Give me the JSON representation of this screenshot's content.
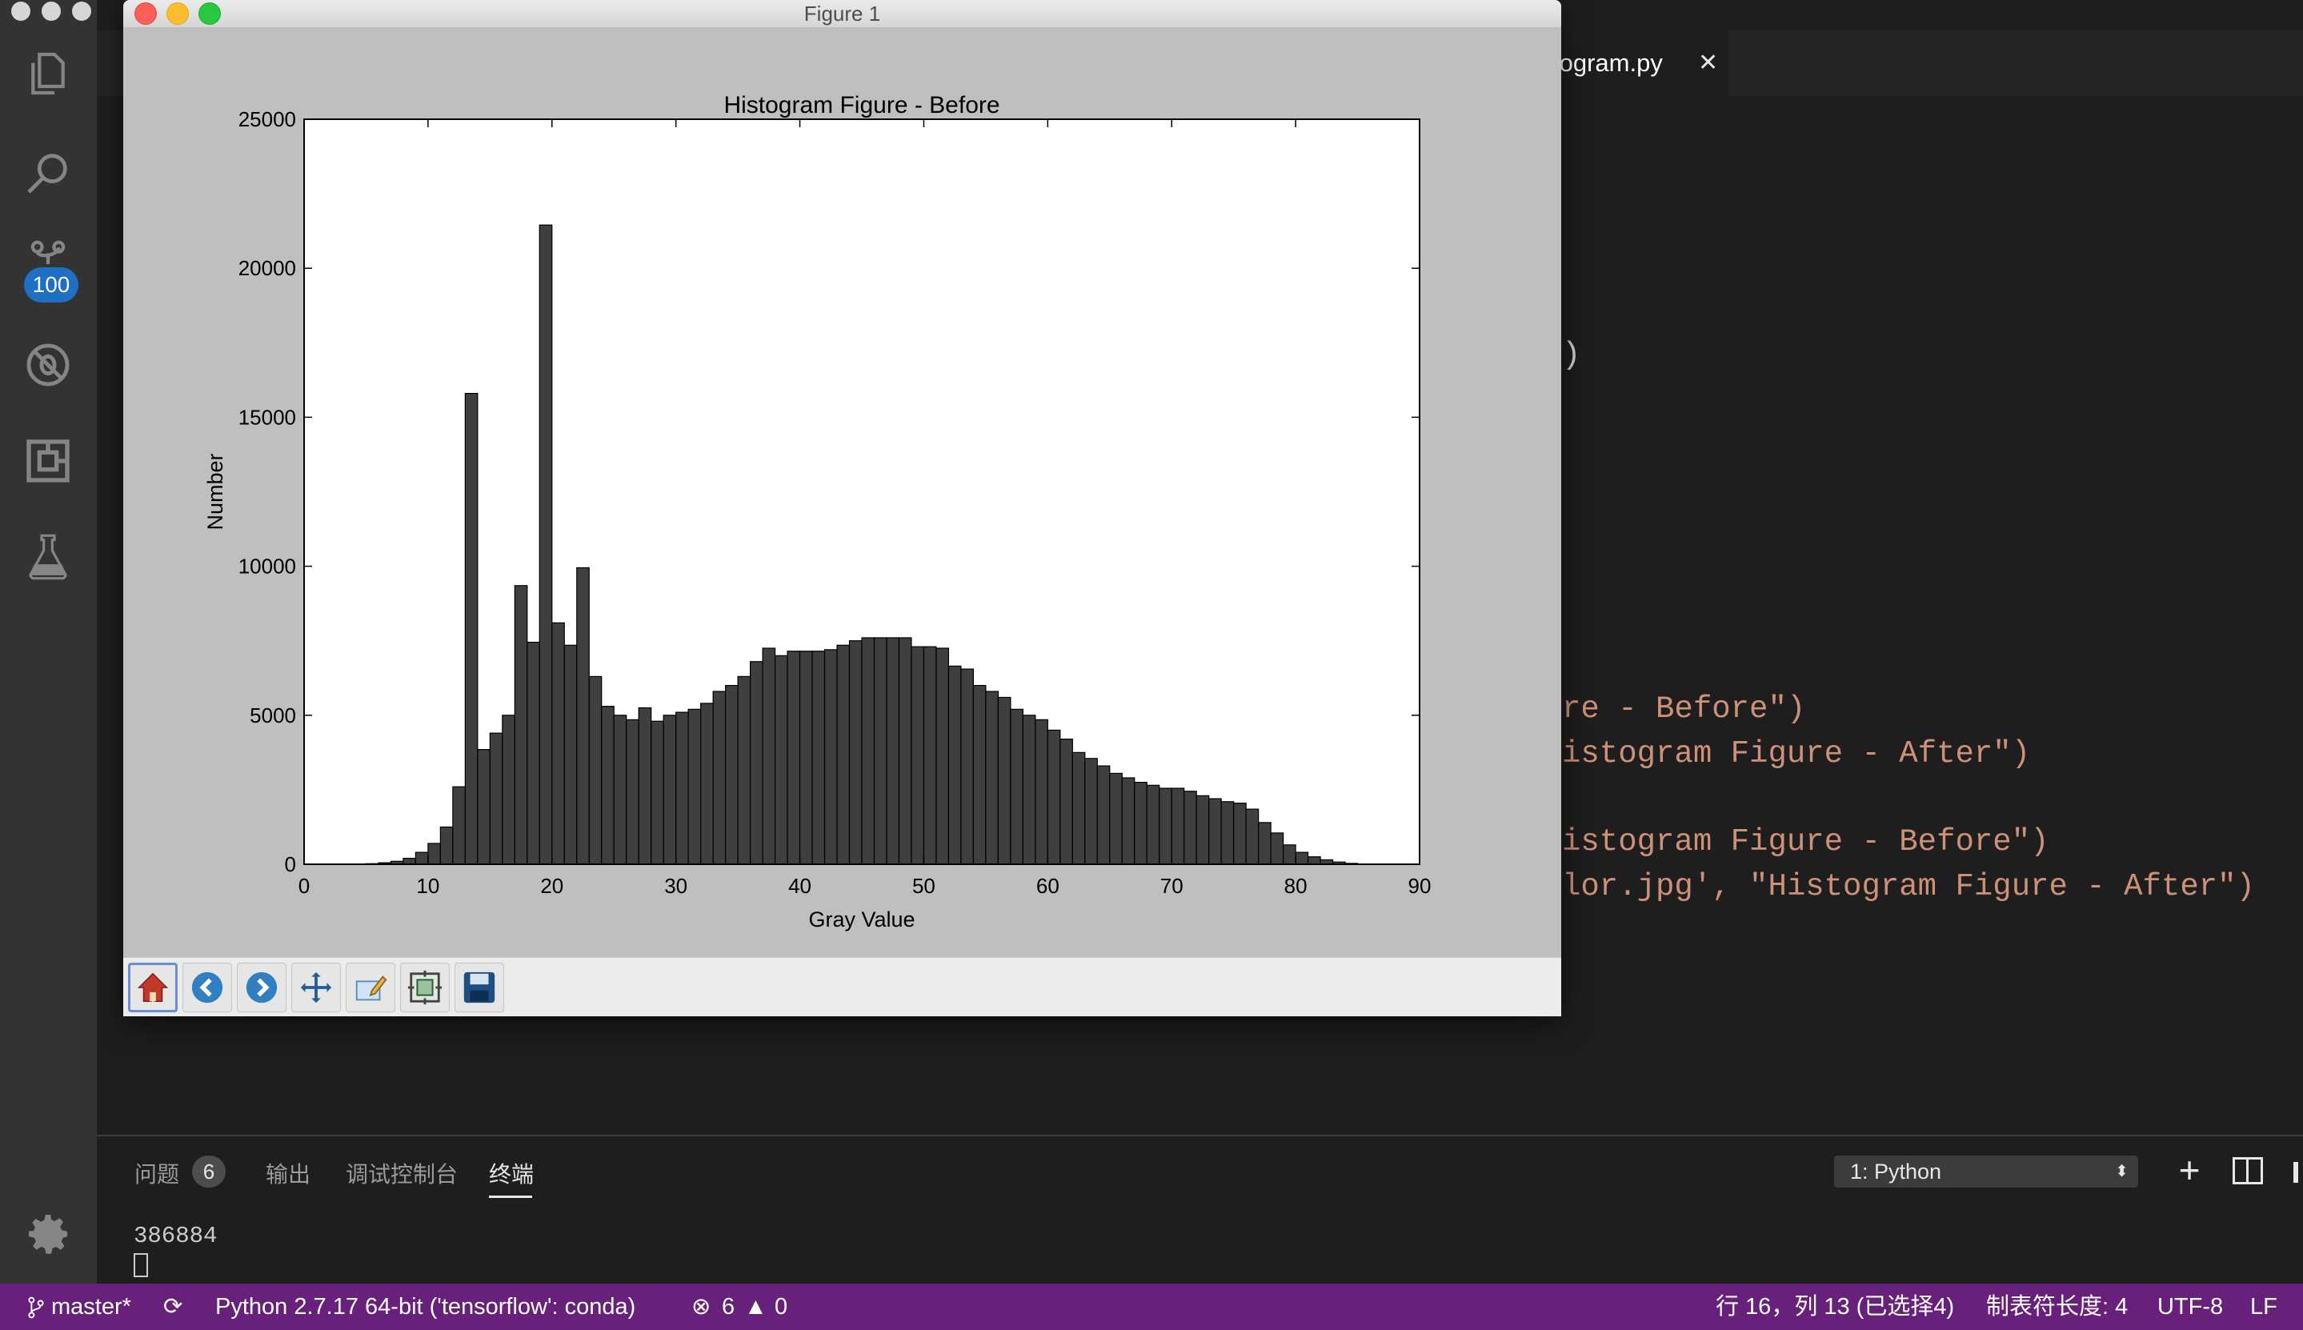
{
  "activity_bar": {
    "icons": [
      "files-icon",
      "search-icon",
      "source-control-icon",
      "debug-icon",
      "extensions-icon",
      "test-flask-icon",
      "gear-icon"
    ],
    "scm_badge": "100"
  },
  "editor": {
    "active_tab": "togram.py",
    "code_lines": [
      {
        "plain": ")",
        "str": ""
      },
      {
        "plain": "",
        "str": "re - Before\")"
      },
      {
        "plain": "",
        "str": "istogram Figure - After\")"
      },
      {
        "plain": "",
        "str": "istogram Figure - Before\")"
      },
      {
        "plain": "",
        "str": "lor.jpg', \"Histogram Figure - After\")"
      }
    ]
  },
  "panel": {
    "tabs": [
      "问题",
      "输出",
      "调试控制台",
      "终端"
    ],
    "problems_count": "6",
    "terminal_select": "1: Python",
    "terminal_output": "386884"
  },
  "statusbar": {
    "branch": "master*",
    "interpreter": "Python 2.7.17 64-bit ('tensorflow': conda)",
    "errors": "6",
    "warnings": "0",
    "cursor": "行 16，列 13 (已选择4)",
    "tab_size": "制表符长度: 4",
    "encoding": "UTF-8",
    "eol": "LF"
  },
  "figure_window": {
    "title": "Figure 1",
    "toolbar": [
      "home-icon",
      "back-icon",
      "forward-icon",
      "pan-icon",
      "edit-icon",
      "configure-subplots-icon",
      "save-icon"
    ]
  },
  "colors": {
    "statusbar": "#68217a",
    "bar_fill": "#3f3f3f",
    "bar_edge": "#000000",
    "string": "#ce9178"
  },
  "chart_data": {
    "type": "bar",
    "title": "Histogram Figure - Before",
    "xlabel": "Gray Value",
    "ylabel": "Number",
    "xlim": [
      0,
      90
    ],
    "ylim": [
      0,
      25000
    ],
    "xticks": [
      0,
      10,
      20,
      30,
      40,
      50,
      60,
      70,
      80,
      90
    ],
    "yticks": [
      0,
      5000,
      10000,
      15000,
      20000,
      25000
    ],
    "grid": false,
    "x": [
      5,
      6,
      7,
      8,
      9,
      10,
      11,
      12,
      13,
      14,
      15,
      16,
      17,
      18,
      19,
      20,
      21,
      22,
      23,
      24,
      25,
      26,
      27,
      28,
      29,
      30,
      31,
      32,
      33,
      34,
      35,
      36,
      37,
      38,
      39,
      40,
      41,
      42,
      43,
      44,
      45,
      46,
      47,
      48,
      49,
      50,
      51,
      52,
      53,
      54,
      55,
      56,
      57,
      58,
      59,
      60,
      61,
      62,
      63,
      64,
      65,
      66,
      67,
      68,
      69,
      70,
      71,
      72,
      73,
      74,
      75,
      76,
      77,
      78,
      79,
      80,
      81,
      82,
      83,
      84,
      85
    ],
    "values": [
      20,
      50,
      100,
      200,
      400,
      700,
      1250,
      2600,
      15800,
      3850,
      4400,
      5000,
      9350,
      7450,
      21450,
      8100,
      7350,
      9950,
      6300,
      5300,
      5000,
      4850,
      5250,
      4800,
      5000,
      5100,
      5200,
      5400,
      5800,
      6000,
      6300,
      6800,
      7250,
      7000,
      7150,
      7150,
      7150,
      7200,
      7350,
      7500,
      7600,
      7600,
      7600,
      7600,
      7300,
      7300,
      7250,
      6650,
      6550,
      6000,
      5800,
      5600,
      5200,
      5000,
      4850,
      4500,
      4200,
      3750,
      3550,
      3300,
      3050,
      2900,
      2750,
      2650,
      2550,
      2550,
      2450,
      2300,
      2200,
      2100,
      2050,
      1850,
      1400,
      1050,
      650,
      400,
      250,
      150,
      75,
      30,
      10
    ]
  }
}
